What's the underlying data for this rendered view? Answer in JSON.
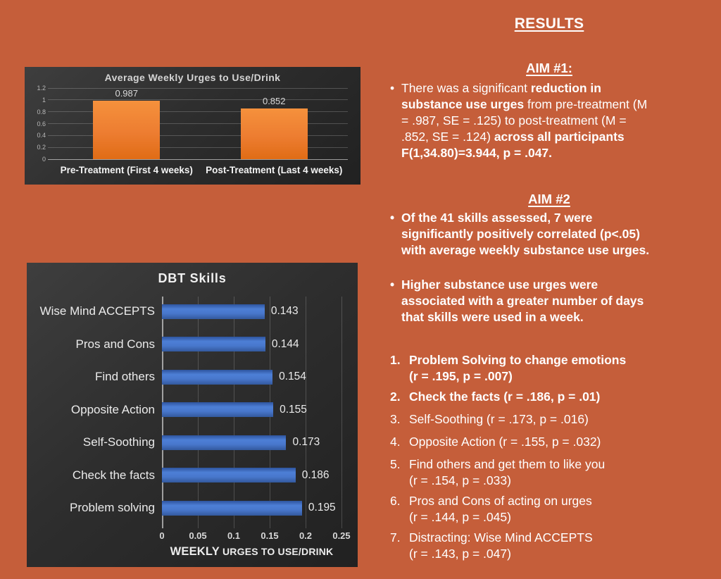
{
  "colors": {
    "background": "#C55E3A",
    "panel_dark": "#2E2E2E",
    "orange_bar": "#ED7D31",
    "blue_bar": "#4472C4",
    "text_light": "#FFFFFF"
  },
  "bullet_char": "•",
  "results": {
    "title": "RESULTS",
    "aim1": {
      "heading": "AIM #1:",
      "bullet_lines": [
        [
          {
            "t": "There was a significant ",
            "b": false
          },
          {
            "t": "reduction in",
            "b": true
          }
        ],
        [
          {
            "t": "substance use urges",
            "b": true
          },
          {
            "t": " from pre-treatment (M",
            "b": false
          }
        ],
        [
          {
            "t": "= .987, SE = .125) to post-treatment (M =",
            "b": false
          }
        ],
        [
          {
            "t": ".852, SE = .124) ",
            "b": false
          },
          {
            "t": "across all participants",
            "b": true
          }
        ],
        [
          {
            "t": "F(1,34.80)=3.944, p = .047.",
            "b": true
          }
        ]
      ]
    },
    "aim2": {
      "heading": "AIM #2",
      "bullets": [
        [
          "Of the 41 skills assessed, 7 were",
          "significantly positively correlated (p<.05)",
          "with average weekly substance use urges."
        ],
        [
          "Higher substance use urges were",
          "associated with a greater number of days",
          "that skills were used in a week."
        ]
      ]
    },
    "findings": [
      {
        "num": "1.",
        "lines": [
          "Problem Solving to change emotions",
          "(r = .195, p = .007)"
        ],
        "bold": true
      },
      {
        "num": "2.",
        "lines": [
          "Check the facts (r = .186, p = .01)"
        ],
        "bold": true
      },
      {
        "num": "3.",
        "lines": [
          "Self-Soothing (r = .173, p = .016)"
        ],
        "bold": false
      },
      {
        "num": "4.",
        "lines": [
          "Opposite Action (r = .155, p = .032)"
        ],
        "bold": false
      },
      {
        "num": "5.",
        "lines": [
          "Find others and get them to like you",
          "(r = .154, p = .033)"
        ],
        "bold": false
      },
      {
        "num": "6.",
        "lines": [
          "Pros and Cons of acting on urges",
          "(r = .144, p = .045)"
        ],
        "bold": false
      },
      {
        "num": "7.",
        "lines": [
          "Distracting: Wise Mind ACCEPTS",
          "(r = .143, p = .047)"
        ],
        "bold": false
      }
    ]
  },
  "chart_data": [
    {
      "type": "bar",
      "orientation": "vertical",
      "title": "Average Weekly Urges to Use/Drink",
      "categories": [
        "Pre-Treatment (First 4 weeks)",
        "Post-Treatment (Last 4 weeks)"
      ],
      "values": [
        0.987,
        0.852
      ],
      "data_labels": [
        "0.987",
        "0.852"
      ],
      "xlabel": "",
      "ylabel": "",
      "ylim": [
        0,
        1.2
      ],
      "yticks": [
        "0",
        "0.2",
        "0.4",
        "0.6",
        "0.8",
        "1",
        "1.2"
      ],
      "grid": true,
      "legend": "none",
      "bar_color": "#ED7D31",
      "background": "dark"
    },
    {
      "type": "bar",
      "orientation": "horizontal",
      "title": "DBT Skills",
      "categories": [
        "Wise Mind ACCEPTS",
        "Pros and Cons",
        "Find others",
        "Opposite Action",
        "Self-Soothing",
        "Check the facts",
        "Problem solving"
      ],
      "values": [
        0.143,
        0.144,
        0.154,
        0.155,
        0.173,
        0.186,
        0.195
      ],
      "data_labels": [
        "0.143",
        "0.144",
        "0.154",
        "0.155",
        "0.173",
        "0.186",
        "0.195"
      ],
      "xlim": [
        0,
        0.25
      ],
      "xticks": [
        "0",
        "0.05",
        "0.1",
        "0.15",
        "0.2",
        "0.25"
      ],
      "xlabel_emph": "WEEKLY",
      "xlabel_rest": " URGES TO USE/DRINK",
      "grid": true,
      "legend": "none",
      "bar_color": "#4472C4",
      "background": "dark"
    }
  ]
}
